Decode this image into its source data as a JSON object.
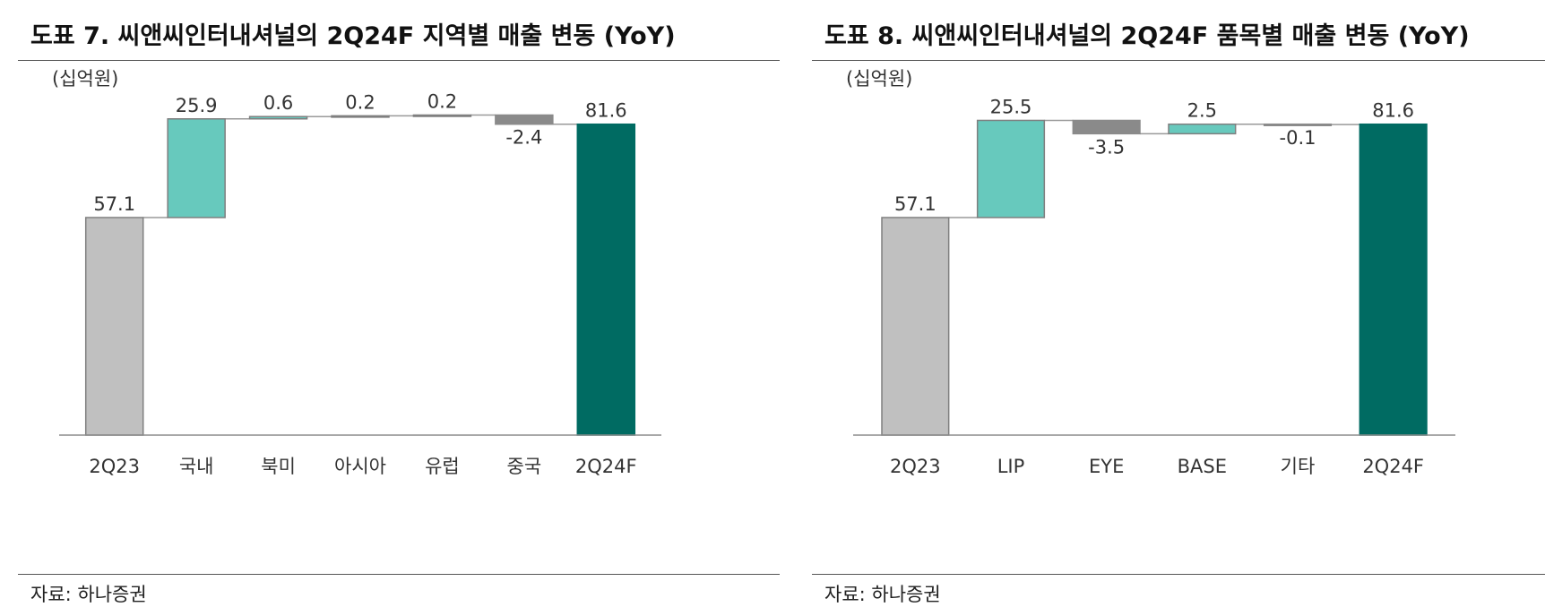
{
  "charts": [
    {
      "title": "도표 7. 씨앤씨인터내셔널의 2Q24F 지역별 매출 변동 (YoY)",
      "unit": "(십억원)",
      "source": "자료: 하나증권"
    },
    {
      "title": "도표 8. 씨앤씨인터내셔널의 2Q24F 품목별 매출 변동 (YoY)",
      "unit": "(십억원)",
      "source": "자료: 하나증권"
    }
  ],
  "colors": {
    "total_start": "#c0c0c0",
    "total_end": "#006b62",
    "increase": "#67c9bd",
    "decrease": "#8a8a8a",
    "outline": "#7f7f7f"
  },
  "chart_data": [
    {
      "type": "bar",
      "subtype": "waterfall",
      "title": "도표 7. 씨앤씨인터내셔널의 2Q24F 지역별 매출 변동 (YoY)",
      "ylabel": "(십억원)",
      "categories": [
        "2Q23",
        "국내",
        "북미",
        "아시아",
        "유럽",
        "중국",
        "2Q24F"
      ],
      "values": [
        57.1,
        25.9,
        0.6,
        0.2,
        0.2,
        -2.4,
        81.6
      ],
      "labels": [
        "57.1",
        "25.9",
        "0.6",
        "0.2",
        "0.2",
        "-2.4",
        "81.6"
      ],
      "kinds": [
        "total",
        "delta",
        "delta",
        "delta",
        "delta",
        "delta",
        "total"
      ],
      "ylim": [
        0,
        86
      ],
      "grid": false,
      "legend": "none"
    },
    {
      "type": "bar",
      "subtype": "waterfall",
      "title": "도표 8. 씨앤씨인터내셔널의 2Q24F 품목별 매출 변동 (YoY)",
      "ylabel": "(십억원)",
      "categories": [
        "2Q23",
        "LIP",
        "EYE",
        "BASE",
        "기타",
        "2Q24F"
      ],
      "values": [
        57.1,
        25.5,
        -3.5,
        2.5,
        -0.1,
        81.6
      ],
      "labels": [
        "57.1",
        "25.5",
        "-3.5",
        "2.5",
        "-0.1",
        "81.6"
      ],
      "kinds": [
        "total",
        "delta",
        "delta",
        "delta",
        "delta",
        "total"
      ],
      "ylim": [
        0,
        86
      ],
      "grid": false,
      "legend": "none"
    }
  ]
}
